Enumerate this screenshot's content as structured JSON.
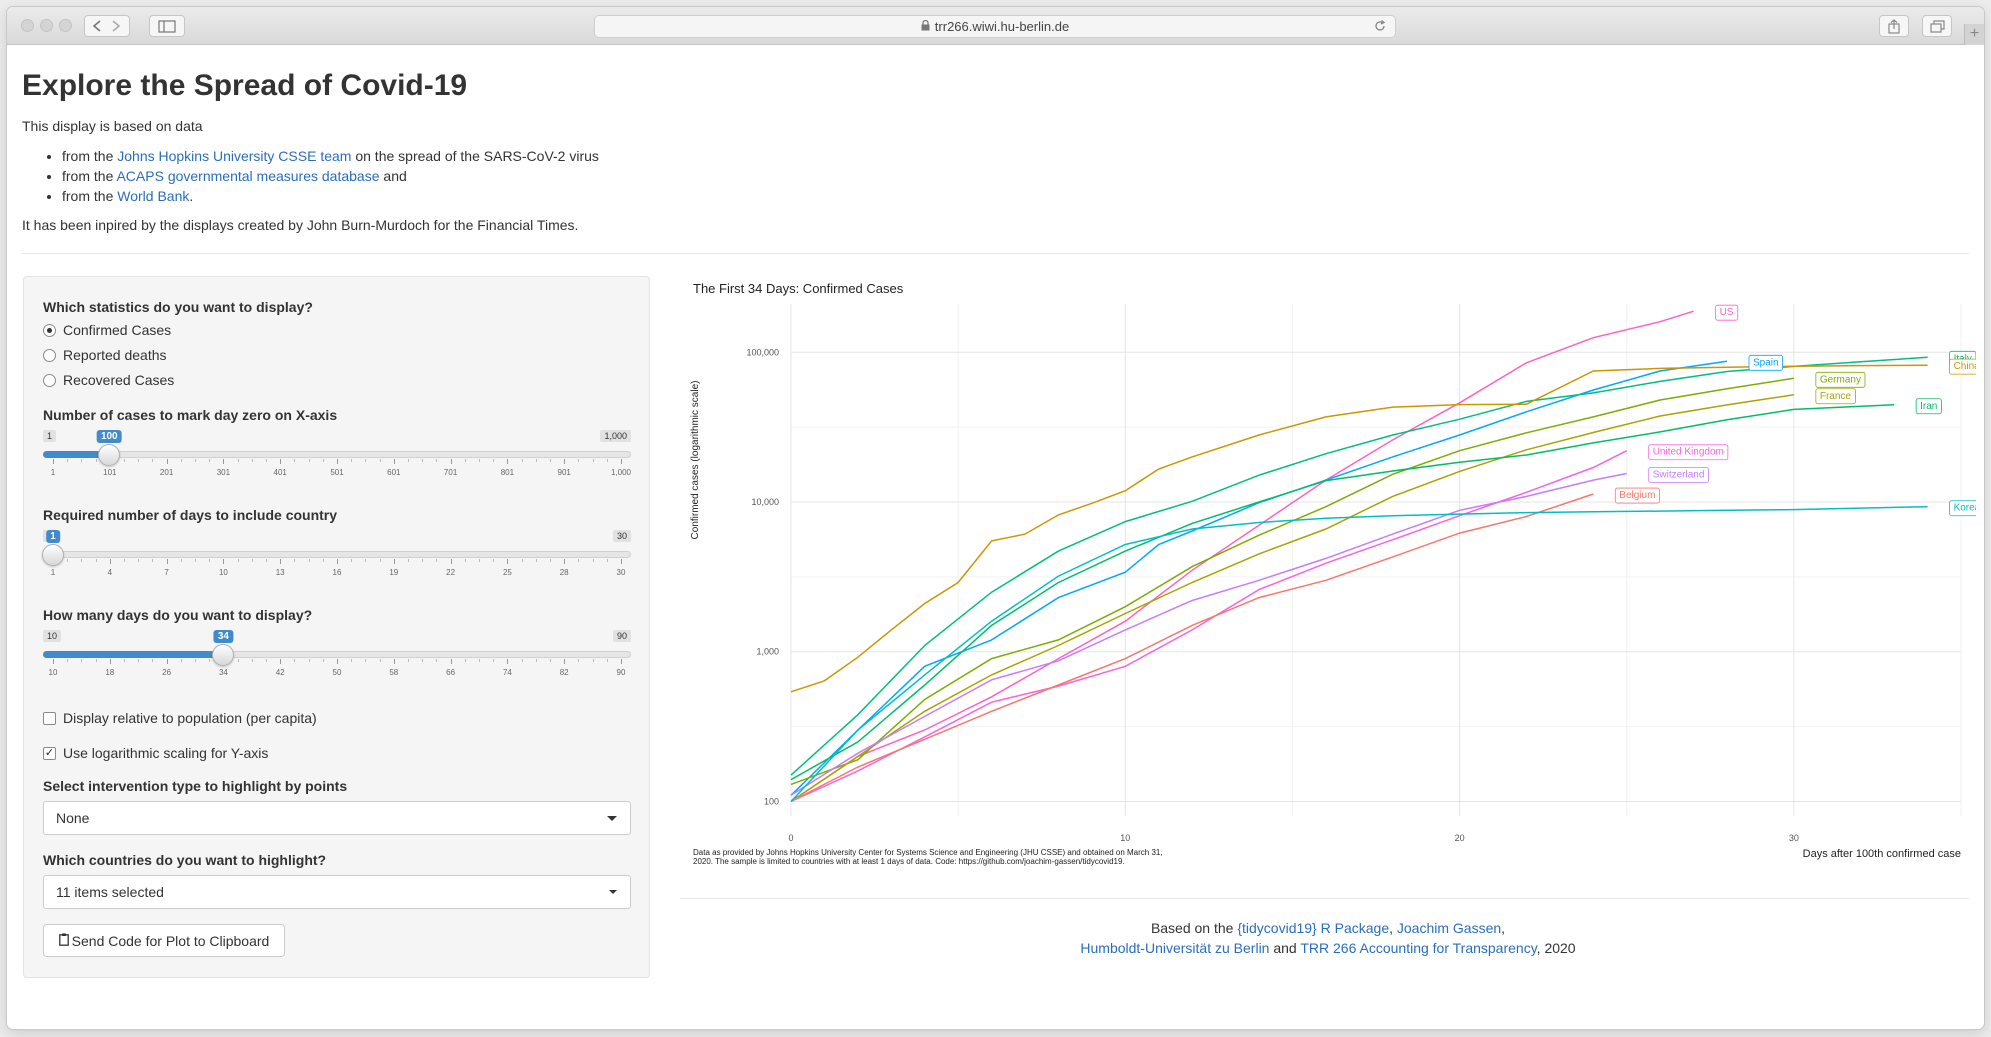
{
  "browser": {
    "url": "trr266.wiwi.hu-berlin.de"
  },
  "page": {
    "title": "Explore the Spread of Covid-19",
    "intro": "This display is based on data",
    "sources": [
      {
        "prefix": "from the ",
        "link": "Johns Hopkins University CSSE team",
        "suffix": " on the spread of the SARS-CoV-2 virus"
      },
      {
        "prefix": "from the ",
        "link": "ACAPS governmental measures database",
        "suffix": " and"
      },
      {
        "prefix": "from the ",
        "link": "World Bank",
        "suffix": "."
      }
    ],
    "credit": "It has been inpired by the displays created by John Burn-Murdoch for the Financial Times."
  },
  "sidebar": {
    "stat_label": "Which statistics do you want to display?",
    "stat_options": [
      "Confirmed Cases",
      "Reported deaths",
      "Recovered Cases"
    ],
    "stat_selected": 0,
    "zero_label": "Number of cases to mark day zero on X-axis",
    "zero_slider": {
      "min_label": "1",
      "max_label": "1,000",
      "value_label": "100",
      "min": 1,
      "max": 1000,
      "value": 100,
      "ticks": [
        "1",
        "101",
        "201",
        "301",
        "401",
        "501",
        "601",
        "701",
        "801",
        "901",
        "1,000"
      ]
    },
    "days_req_label": "Required number of days to include country",
    "days_req_slider": {
      "min_label": "1",
      "max_label": "30",
      "value_label": "1",
      "min": 1,
      "max": 30,
      "value": 1,
      "ticks": [
        "1",
        "4",
        "7",
        "10",
        "13",
        "16",
        "19",
        "22",
        "25",
        "28",
        "30"
      ]
    },
    "days_disp_label": "How many days do you want to display?",
    "days_disp_slider": {
      "min_label": "10",
      "max_label": "90",
      "value_label": "34",
      "min": 10,
      "max": 90,
      "value": 34,
      "ticks": [
        "10",
        "18",
        "26",
        "34",
        "42",
        "50",
        "58",
        "66",
        "74",
        "82",
        "90"
      ]
    },
    "per_capita_label": "Display relative to population (per capita)",
    "per_capita_checked": false,
    "log_label": "Use logarithmic scaling for Y-axis",
    "log_checked": true,
    "intervention_label": "Select intervention type to highlight by points",
    "intervention_value": "None",
    "countries_label": "Which countries do you want to highlight?",
    "countries_value": "11 items selected",
    "send_button": "Send Code for Plot to Clipboard"
  },
  "chart_data": {
    "type": "line",
    "title": "The First 34 Days: Confirmed Cases",
    "xlabel": "Days after 100th confirmed case",
    "ylabel": "Confirmed cases (logarithmic scale)",
    "y_scale": "log",
    "xlim": [
      0,
      35
    ],
    "ylim": [
      80,
      210000
    ],
    "x_ticks": [
      0,
      10,
      20,
      30
    ],
    "y_ticks": [
      100,
      1000,
      10000,
      100000
    ],
    "y_tick_labels": [
      "100",
      "1,000",
      "10,000",
      "100,000"
    ],
    "grid": true,
    "series": [
      {
        "name": "US",
        "color": "#ff61c3",
        "x": [
          0,
          2,
          4,
          6,
          8,
          10,
          12,
          14,
          16,
          18,
          20,
          22,
          24,
          26,
          27
        ],
        "values": [
          100,
          200,
          300,
          500,
          900,
          1600,
          3500,
          7000,
          14000,
          26000,
          46000,
          85000,
          125000,
          160000,
          188000
        ]
      },
      {
        "name": "Spain",
        "color": "#00a9ff",
        "x": [
          0,
          2,
          4,
          6,
          8,
          10,
          11,
          12,
          14,
          16,
          18,
          20,
          22,
          24,
          26,
          28
        ],
        "values": [
          110,
          300,
          800,
          1200,
          2300,
          3400,
          5200,
          6400,
          9900,
          14000,
          20000,
          28000,
          40000,
          56000,
          75000,
          87000
        ]
      },
      {
        "name": "Italy",
        "color": "#00bf7d",
        "x": [
          0,
          2,
          4,
          6,
          8,
          10,
          12,
          14,
          16,
          18,
          20,
          22,
          24,
          26,
          28,
          30,
          32,
          34
        ],
        "values": [
          150,
          380,
          1100,
          2500,
          4700,
          7400,
          10100,
          15100,
          21000,
          28000,
          35700,
          47000,
          53500,
          63900,
          74400,
          80500,
          86500,
          92500
        ]
      },
      {
        "name": "China",
        "color": "#cd9600",
        "x": [
          0,
          1,
          2,
          3,
          4,
          5,
          6,
          7,
          8,
          9,
          10,
          11,
          12,
          14,
          16,
          18,
          20,
          22,
          24,
          26,
          28,
          30,
          32,
          34
        ],
        "values": [
          540,
          640,
          920,
          1400,
          2100,
          2900,
          5500,
          6100,
          8200,
          9800,
          11900,
          16600,
          20000,
          28000,
          37000,
          43000,
          44700,
          45000,
          75000,
          78000,
          79500,
          80700,
          81500,
          82000
        ]
      },
      {
        "name": "Germany",
        "color": "#7cae00",
        "x": [
          0,
          2,
          4,
          6,
          8,
          10,
          12,
          14,
          16,
          18,
          20,
          22,
          24,
          26,
          28,
          30
        ],
        "values": [
          130,
          190,
          480,
          900,
          1200,
          2000,
          3700,
          6000,
          9300,
          15300,
          22000,
          29000,
          37000,
          48000,
          57000,
          67000
        ]
      },
      {
        "name": "France",
        "color": "#aba300",
        "x": [
          0,
          2,
          4,
          6,
          8,
          10,
          12,
          14,
          16,
          18,
          20,
          22,
          24,
          26,
          28,
          30
        ],
        "values": [
          100,
          200,
          400,
          700,
          1100,
          1800,
          2900,
          4500,
          6600,
          10900,
          16000,
          22300,
          29100,
          37500,
          44500,
          52000
        ]
      },
      {
        "name": "Iran",
        "color": "#00be67",
        "x": [
          0,
          2,
          4,
          6,
          8,
          10,
          12,
          14,
          16,
          18,
          20,
          22,
          24,
          26,
          28,
          30,
          33
        ],
        "values": [
          140,
          250,
          600,
          1500,
          2900,
          4700,
          7200,
          10000,
          13900,
          16100,
          18400,
          20600,
          24800,
          29400,
          35400,
          41500,
          44600
        ]
      },
      {
        "name": "United Kingdom",
        "color": "#f564e3",
        "x": [
          0,
          2,
          4,
          6,
          8,
          10,
          12,
          14,
          16,
          18,
          20,
          22,
          24,
          25
        ],
        "values": [
          100,
          160,
          270,
          460,
          590,
          800,
          1400,
          2600,
          3900,
          5600,
          8100,
          11600,
          17000,
          22000
        ]
      },
      {
        "name": "Switzerland",
        "color": "#c77cff",
        "x": [
          0,
          2,
          4,
          6,
          8,
          10,
          12,
          14,
          16,
          18,
          20,
          22,
          24,
          25
        ],
        "values": [
          110,
          210,
          370,
          650,
          870,
          1400,
          2200,
          3000,
          4200,
          6100,
          8800,
          10900,
          14000,
          15500
        ]
      },
      {
        "name": "Belgium",
        "color": "#f8766d",
        "x": [
          0,
          2,
          4,
          6,
          8,
          10,
          12,
          14,
          16,
          18,
          20,
          22,
          24
        ],
        "values": [
          100,
          170,
          260,
          400,
          600,
          900,
          1500,
          2300,
          3000,
          4300,
          6200,
          8000,
          11300
        ]
      },
      {
        "name": "Korea, South",
        "color": "#00bfc4",
        "x": [
          0,
          2,
          4,
          6,
          8,
          10,
          12,
          14,
          16,
          18,
          20,
          22,
          24,
          26,
          28,
          30,
          32,
          34
        ],
        "values": [
          100,
          300,
          700,
          1600,
          3200,
          5200,
          6600,
          7300,
          7800,
          8100,
          8300,
          8500,
          8600,
          8700,
          8800,
          8900,
          9100,
          9300
        ]
      }
    ]
  },
  "caption": "Data as provided by Johns Hopkins University Center for Systems Science and Engineering (JHU CSSE) and obtained on March 31, 2020. The sample is limited to countries with at least 1 days of data. Code: https://github.com/joachim-gassen/tidycovid19.",
  "footer": {
    "based_on": "Based on the ",
    "package_link": "{tidycovid19} R Package",
    "comma1": ", ",
    "author_link": "Joachim Gassen",
    "comma2": ",",
    "hu_link": "Humboldt-Universität zu Berlin",
    "and": " and ",
    "trr_link": "TRR 266 Accounting for Transparency",
    "year": ", 2020"
  }
}
